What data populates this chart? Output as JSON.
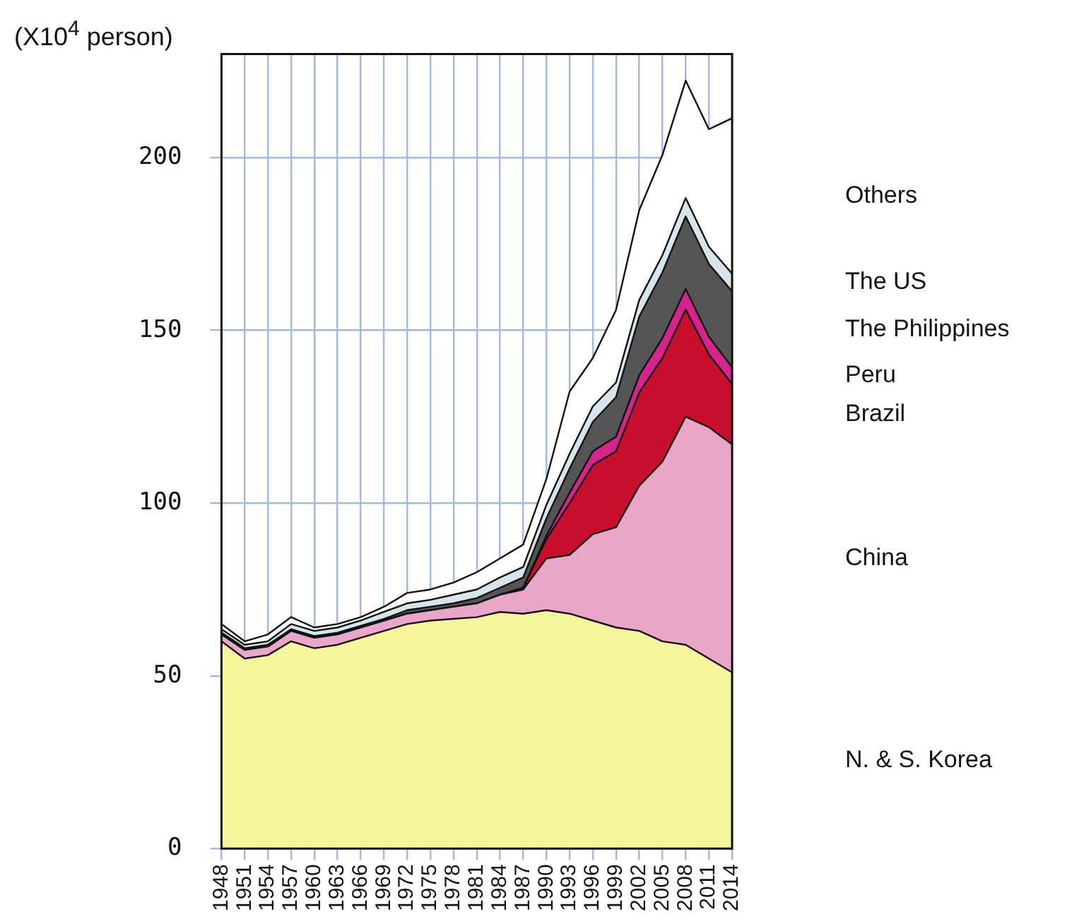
{
  "chart_data": {
    "type": "area",
    "stacked": true,
    "ylabel": "(X10$^{4}$ person)",
    "x": [
      1948,
      1951,
      1954,
      1957,
      1960,
      1963,
      1966,
      1969,
      1972,
      1975,
      1978,
      1981,
      1984,
      1987,
      1990,
      1993,
      1996,
      1999,
      2002,
      2005,
      2008,
      2011,
      2014
    ],
    "series": [
      {
        "name": "N. & S. Korea",
        "color": "#f5f59a",
        "values": [
          60,
          55,
          56,
          60,
          58,
          59,
          61,
          63,
          65,
          66,
          66.5,
          67,
          68.5,
          68,
          69,
          68,
          66,
          64,
          63,
          60,
          59,
          55,
          51
        ]
      },
      {
        "name": "China",
        "color": "#e9a6c8",
        "values": [
          2,
          2.5,
          2.5,
          3,
          3,
          3,
          3,
          3,
          3,
          3,
          3.5,
          4,
          5,
          7,
          15,
          17,
          25,
          29,
          42,
          52,
          66,
          67,
          66
        ]
      },
      {
        "name": "Brazil",
        "color": "#c8102e",
        "values": [
          0,
          0,
          0,
          0,
          0,
          0,
          0,
          0,
          0,
          0,
          0,
          0,
          0,
          0.5,
          5.6,
          15,
          20,
          22,
          27,
          30,
          31,
          21,
          17.5
        ]
      },
      {
        "name": "Peru",
        "color": "#d6248c",
        "values": [
          0,
          0,
          0,
          0,
          0,
          0,
          0,
          0,
          0,
          0,
          0,
          0,
          0,
          0,
          1,
          3,
          4,
          4.2,
          5,
          5.8,
          6,
          5.2,
          4.8
        ]
      },
      {
        "name": "The Philippines",
        "color": "#555555",
        "values": [
          0.5,
          0.5,
          0.5,
          0.5,
          0.5,
          0.5,
          0.5,
          0.5,
          1,
          1,
          1,
          1.5,
          2,
          3,
          5,
          7,
          8.5,
          11.5,
          17,
          19,
          21,
          21,
          22
        ]
      },
      {
        "name": "The US",
        "color": "#d8e4ec",
        "values": [
          1,
          1,
          1,
          1.5,
          1.5,
          1.5,
          1.5,
          2,
          2,
          2,
          2.5,
          2.5,
          3,
          3,
          3.9,
          4.3,
          4.5,
          4.2,
          4.8,
          5,
          5.3,
          5,
          5.1
        ]
      },
      {
        "name": "Others",
        "color": "#ffffff",
        "values": [
          1.5,
          1,
          2,
          2,
          1,
          1,
          1,
          1.5,
          3,
          3,
          3.5,
          5,
          5.5,
          6.5,
          7.5,
          18,
          14,
          21,
          26,
          29,
          34,
          34,
          45
        ]
      }
    ],
    "xlim": [
      1948,
      2014
    ],
    "xticks": [
      1948,
      1951,
      1954,
      1957,
      1960,
      1963,
      1966,
      1969,
      1972,
      1975,
      1978,
      1981,
      1984,
      1987,
      1990,
      1993,
      1996,
      1999,
      2002,
      2005,
      2008,
      2011,
      2014
    ],
    "ylim": [
      0,
      230
    ],
    "yticks": [
      0,
      50,
      100,
      150,
      200
    ],
    "grid": true,
    "legend": false
  }
}
